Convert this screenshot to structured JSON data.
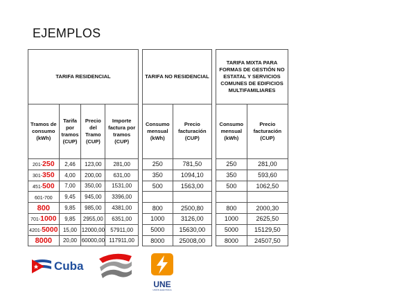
{
  "title": "EJEMPLOS",
  "residencial": {
    "header": "TARIFA RESIDENCIAL",
    "columns": [
      "Tramos de consumo (kWh)",
      "Tarifa por tramos (CUP)",
      "Precio del Tramo (CUP)",
      "Importe factura por tramos (CUP)"
    ],
    "rows": [
      {
        "tramo_prefix": "201-",
        "tramo_hl": "250",
        "tarifa": "2,46",
        "precio": "123,00",
        "importe": "281,00"
      },
      {
        "tramo_prefix": "301-",
        "tramo_hl": "350",
        "tarifa": "4,00",
        "precio": "200,00",
        "importe": "631,00"
      },
      {
        "tramo_prefix": "451-",
        "tramo_hl": "500",
        "tarifa": "7,00",
        "precio": "350,00",
        "importe": "1531,00"
      },
      {
        "tramo_prefix": "601-700",
        "tramo_hl": "",
        "tarifa": "9,45",
        "precio": "945,00",
        "importe": "3396,00"
      },
      {
        "tramo_prefix": "",
        "tramo_hl": "800",
        "tarifa": "9,85",
        "precio": "985,00",
        "importe": "4381,00"
      },
      {
        "tramo_prefix": "701-",
        "tramo_hl": "1000",
        "tarifa": "9,85",
        "precio": "2955,00",
        "importe": "6351,00"
      },
      {
        "tramo_prefix": "4201-",
        "tramo_hl": "5000",
        "tarifa": "15,00",
        "precio": "12000,00",
        "importe": "57911,00"
      },
      {
        "tramo_prefix": "",
        "tramo_hl": "8000",
        "tarifa": "20,00",
        "precio": "60000,00",
        "importe": "117911,00"
      }
    ]
  },
  "no_residencial": {
    "header": "TARIFA NO RESIDENCIAL",
    "columns": [
      "Consumo mensual (kWh)",
      "Precio facturación (CUP)"
    ],
    "rows": [
      {
        "consumo": "250",
        "precio": "781,50"
      },
      {
        "consumo": "350",
        "precio": "1094,10"
      },
      {
        "consumo": "500",
        "precio": "1563,00"
      },
      {
        "consumo": "",
        "precio": ""
      },
      {
        "consumo": "800",
        "precio": "2500,80"
      },
      {
        "consumo": "1000",
        "precio": "3126,00"
      },
      {
        "consumo": "5000",
        "precio": "15630,00"
      },
      {
        "consumo": "8000",
        "precio": "25008,00"
      }
    ]
  },
  "mixta": {
    "header": "TARIFA MIXTA PARA FORMAS DE GESTIÓN NO ESTATAL Y SERVICIOS COMUNES DE EDIFICIOS MULTIFAMILIARES",
    "columns": [
      "Consumo mensual (kWh)",
      "Precio facturación (CUP)"
    ],
    "rows": [
      {
        "consumo": "250",
        "precio": "281,00"
      },
      {
        "consumo": "350",
        "precio": "593,60"
      },
      {
        "consumo": "500",
        "precio": "1062,50"
      },
      {
        "consumo": "",
        "precio": ""
      },
      {
        "consumo": "800",
        "precio": "2000,30"
      },
      {
        "consumo": "1000",
        "precio": "2625,50"
      },
      {
        "consumo": "5000",
        "precio": "15129,50"
      },
      {
        "consumo": "8000",
        "precio": "24507,50"
      }
    ]
  },
  "logos": {
    "cuba_text": "Cuba",
    "une_text": "UNE",
    "une_sub": "UNIÓN ELÉCTRICA"
  },
  "colors": {
    "highlight_red": "#e01010",
    "cuba_blue": "#1f4e9c",
    "une_orange": "#f39200"
  }
}
